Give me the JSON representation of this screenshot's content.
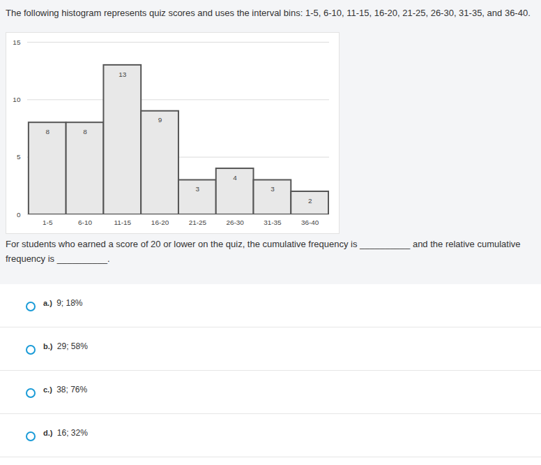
{
  "header": "The following histogram represents quiz scores and uses the interval bins: 1-5, 6-10, 11-15, 16-20, 21-25, 26-30, 31-35, and 36-40.",
  "chart_data": {
    "type": "bar",
    "categories": [
      "1-5",
      "6-10",
      "11-15",
      "16-20",
      "21-25",
      "26-30",
      "31-35",
      "36-40"
    ],
    "values": [
      8,
      8,
      13,
      9,
      3,
      4,
      3,
      2
    ],
    "color": "#e8e8e8",
    "ylim": [
      0,
      15
    ],
    "yticks": [
      0,
      5,
      10,
      15
    ],
    "grid": true,
    "data_labels": true
  },
  "question": "For students who earned a score of 20 or lower on the quiz, the cumulative frequency is __________ and the relative cumulative frequency is __________.",
  "options": [
    {
      "label": "a.)",
      "text": "9; 18%"
    },
    {
      "label": "b.)",
      "text": "29; 58%"
    },
    {
      "label": "c.)",
      "text": "38; 76%"
    },
    {
      "label": "d.)",
      "text": "16; 32%"
    }
  ]
}
